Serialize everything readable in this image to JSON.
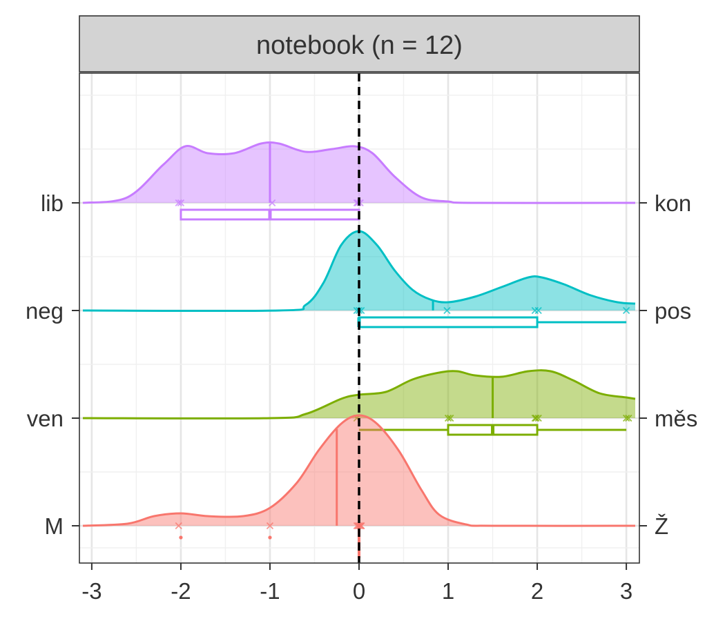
{
  "chart_data": {
    "type": "ridgeline",
    "facet_title": "notebook (n = 12)",
    "xlim": [
      -3.1,
      3.1
    ],
    "x_ticks": [
      "-3",
      "-2",
      "-1",
      "0",
      "1",
      "2",
      "3"
    ],
    "x_tick_values": [
      -3,
      -2,
      -1,
      0,
      1,
      2,
      3
    ],
    "reference_line_x": 0,
    "grid": true,
    "series": [
      {
        "left_label": "lib",
        "right_label": "kon",
        "color": "#C77CFF",
        "density_x": [
          -3.1,
          -2.6,
          -2.2,
          -1.95,
          -1.7,
          -1.4,
          -1.1,
          -0.9,
          -0.6,
          -0.3,
          -0.05,
          0.15,
          0.4,
          0.7,
          1.0,
          1.3,
          3.1
        ],
        "density_y": [
          0.0,
          0.08,
          0.55,
          0.82,
          0.72,
          0.72,
          0.86,
          0.86,
          0.74,
          0.78,
          0.82,
          0.72,
          0.38,
          0.08,
          0.02,
          0.0,
          0.0
        ],
        "mean": -1.0,
        "points": [
          -2,
          -2,
          -1,
          0,
          0,
          0
        ],
        "box": {
          "min": -2,
          "q1": -2,
          "median": -1,
          "q3": 0,
          "max": 0
        }
      },
      {
        "left_label": "neg",
        "right_label": "pos",
        "color": "#00BFC4",
        "density_x": [
          -3.1,
          -0.9,
          -0.6,
          -0.4,
          -0.2,
          0.0,
          0.2,
          0.4,
          0.6,
          0.8,
          1.0,
          1.3,
          1.6,
          1.9,
          2.05,
          2.3,
          2.6,
          2.9,
          3.1
        ],
        "density_y": [
          0.0,
          0.0,
          0.08,
          0.4,
          0.95,
          1.15,
          0.95,
          0.58,
          0.3,
          0.16,
          0.12,
          0.2,
          0.34,
          0.48,
          0.48,
          0.38,
          0.22,
          0.12,
          0.1
        ],
        "mean": 0.83,
        "points": [
          0,
          0,
          0,
          1,
          2,
          2,
          3
        ],
        "box": {
          "min": 0,
          "q1": 0,
          "median": 0,
          "q3": 2,
          "max": 3
        }
      },
      {
        "left_label": "ven",
        "right_label": "měs",
        "color": "#7CAE00",
        "density_x": [
          -3.1,
          -1.0,
          -0.6,
          -0.2,
          0.0,
          0.3,
          0.6,
          0.9,
          1.1,
          1.3,
          1.6,
          1.9,
          2.15,
          2.4,
          2.7,
          3.0,
          3.1
        ],
        "density_y": [
          0.0,
          0.0,
          0.06,
          0.28,
          0.34,
          0.38,
          0.56,
          0.66,
          0.68,
          0.62,
          0.6,
          0.68,
          0.68,
          0.55,
          0.36,
          0.3,
          0.28
        ],
        "mean": 1.5,
        "points": [
          0,
          1,
          1,
          2,
          2,
          2,
          3,
          3
        ],
        "box": {
          "min": 0,
          "q1": 1,
          "median": 1.5,
          "q3": 2,
          "max": 3
        }
      },
      {
        "left_label": "M",
        "right_label": "Ž",
        "color": "#F8766D",
        "density_x": [
          -3.1,
          -2.6,
          -2.3,
          -2.0,
          -1.7,
          -1.3,
          -1.0,
          -0.7,
          -0.45,
          -0.2,
          0.0,
          0.2,
          0.45,
          0.7,
          0.9,
          1.2,
          1.5,
          3.1
        ],
        "density_y": [
          0.0,
          0.03,
          0.14,
          0.18,
          0.14,
          0.14,
          0.26,
          0.62,
          1.1,
          1.48,
          1.6,
          1.48,
          1.08,
          0.52,
          0.16,
          0.02,
          0.0,
          0.0
        ],
        "mean": -0.25,
        "points": [
          -2,
          -1,
          0,
          0,
          0,
          0,
          0,
          0
        ],
        "outliers": [
          -2,
          -1
        ],
        "box": {
          "min": 0,
          "q1": 0,
          "median": 0,
          "q3": 0,
          "max": 0
        }
      }
    ]
  }
}
